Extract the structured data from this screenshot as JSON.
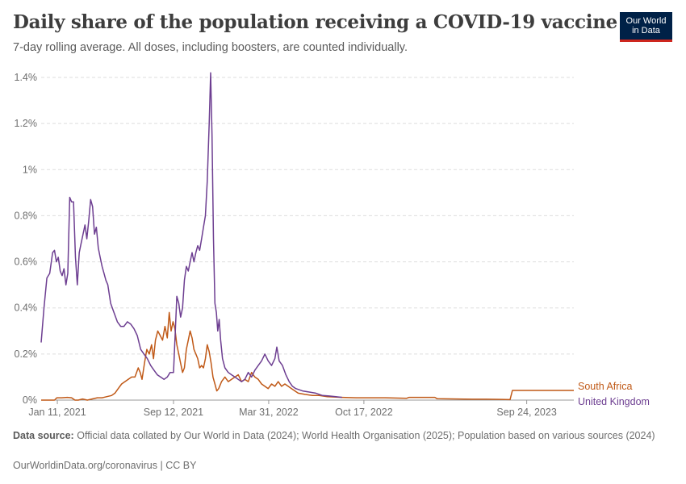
{
  "header": {
    "title": "Daily share of the population receiving a COVID-19 vaccine dose",
    "subtitle": "7-day rolling average. All doses, including boosters, are counted individually.",
    "logo_line1": "Our World",
    "logo_line2": "in Data"
  },
  "footer": {
    "source_label": "Data source:",
    "source_text": "Official data collated by Our World in Data (2024); World Health Organisation (2025); Population based on various sources (2024)",
    "license": "OurWorldinData.org/coronavirus | CC BY"
  },
  "colors": {
    "brand": "#002147",
    "brand_accent": "#ce261e",
    "south_africa": "#c05917",
    "united_kingdom": "#6d3e91",
    "grid": "#dddddd"
  },
  "chart_data": {
    "type": "line",
    "ylim": [
      0,
      1.4
    ],
    "y_ticks": [
      "0%",
      "0.2%",
      "0.4%",
      "0.6%",
      "0.8%",
      "1%",
      "1.2%",
      "1.4%"
    ],
    "x_ticks": [
      "Jan 11, 2021",
      "Sep 12, 2021",
      "Mar 31, 2022",
      "Oct 17, 2022",
      "Sep 24, 2023"
    ],
    "x_range": [
      "2020-12-08",
      "2024-01-01"
    ],
    "grid": "horizontal dashed",
    "legend_placement": "right, at line ends",
    "series": [
      {
        "name": "United Kingdom",
        "points": [
          [
            "2020-12-08",
            0.25
          ],
          [
            "2020-12-14",
            0.4
          ],
          [
            "2020-12-20",
            0.53
          ],
          [
            "2020-12-26",
            0.55
          ],
          [
            "2021-01-01",
            0.64
          ],
          [
            "2021-01-05",
            0.65
          ],
          [
            "2021-01-09",
            0.6
          ],
          [
            "2021-01-13",
            0.62
          ],
          [
            "2021-01-17",
            0.56
          ],
          [
            "2021-01-21",
            0.54
          ],
          [
            "2021-01-25",
            0.57
          ],
          [
            "2021-01-29",
            0.5
          ],
          [
            "2021-02-02",
            0.55
          ],
          [
            "2021-02-06",
            0.88
          ],
          [
            "2021-02-10",
            0.86
          ],
          [
            "2021-02-14",
            0.86
          ],
          [
            "2021-02-18",
            0.62
          ],
          [
            "2021-02-22",
            0.5
          ],
          [
            "2021-02-26",
            0.64
          ],
          [
            "2021-03-02",
            0.68
          ],
          [
            "2021-03-06",
            0.72
          ],
          [
            "2021-03-10",
            0.76
          ],
          [
            "2021-03-14",
            0.7
          ],
          [
            "2021-03-18",
            0.78
          ],
          [
            "2021-03-22",
            0.87
          ],
          [
            "2021-03-26",
            0.84
          ],
          [
            "2021-03-30",
            0.72
          ],
          [
            "2021-04-03",
            0.75
          ],
          [
            "2021-04-07",
            0.66
          ],
          [
            "2021-04-11",
            0.62
          ],
          [
            "2021-04-15",
            0.58
          ],
          [
            "2021-04-19",
            0.55
          ],
          [
            "2021-04-23",
            0.52
          ],
          [
            "2021-04-27",
            0.5
          ],
          [
            "2021-05-03",
            0.42
          ],
          [
            "2021-05-10",
            0.38
          ],
          [
            "2021-05-17",
            0.34
          ],
          [
            "2021-05-24",
            0.32
          ],
          [
            "2021-05-31",
            0.32
          ],
          [
            "2021-06-07",
            0.34
          ],
          [
            "2021-06-14",
            0.33
          ],
          [
            "2021-06-21",
            0.31
          ],
          [
            "2021-06-28",
            0.28
          ],
          [
            "2021-07-05",
            0.22
          ],
          [
            "2021-07-12",
            0.2
          ],
          [
            "2021-07-19",
            0.18
          ],
          [
            "2021-07-26",
            0.15
          ],
          [
            "2021-08-02",
            0.13
          ],
          [
            "2021-08-09",
            0.11
          ],
          [
            "2021-08-16",
            0.1
          ],
          [
            "2021-08-23",
            0.09
          ],
          [
            "2021-08-30",
            0.1
          ],
          [
            "2021-09-05",
            0.12
          ],
          [
            "2021-09-12",
            0.12
          ],
          [
            "2021-09-19",
            0.45
          ],
          [
            "2021-09-23",
            0.42
          ],
          [
            "2021-09-27",
            0.36
          ],
          [
            "2021-10-01",
            0.4
          ],
          [
            "2021-10-05",
            0.52
          ],
          [
            "2021-10-09",
            0.58
          ],
          [
            "2021-10-13",
            0.56
          ],
          [
            "2021-10-17",
            0.6
          ],
          [
            "2021-10-21",
            0.64
          ],
          [
            "2021-10-25",
            0.6
          ],
          [
            "2021-10-29",
            0.64
          ],
          [
            "2021-11-02",
            0.67
          ],
          [
            "2021-11-06",
            0.65
          ],
          [
            "2021-11-10",
            0.7
          ],
          [
            "2021-11-14",
            0.75
          ],
          [
            "2021-11-18",
            0.8
          ],
          [
            "2021-11-22",
            0.95
          ],
          [
            "2021-11-26",
            1.2
          ],
          [
            "2021-11-29",
            1.42
          ],
          [
            "2021-12-02",
            1.15
          ],
          [
            "2021-12-05",
            0.7
          ],
          [
            "2021-12-08",
            0.42
          ],
          [
            "2021-12-11",
            0.38
          ],
          [
            "2021-12-14",
            0.3
          ],
          [
            "2021-12-17",
            0.35
          ],
          [
            "2021-12-20",
            0.26
          ],
          [
            "2021-12-24",
            0.18
          ],
          [
            "2021-12-29",
            0.14
          ],
          [
            "2022-01-05",
            0.12
          ],
          [
            "2022-01-12",
            0.11
          ],
          [
            "2022-01-19",
            0.1
          ],
          [
            "2022-01-26",
            0.09
          ],
          [
            "2022-02-02",
            0.08
          ],
          [
            "2022-02-09",
            0.09
          ],
          [
            "2022-02-16",
            0.12
          ],
          [
            "2022-02-23",
            0.1
          ],
          [
            "2022-03-02",
            0.13
          ],
          [
            "2022-03-09",
            0.15
          ],
          [
            "2022-03-16",
            0.17
          ],
          [
            "2022-03-23",
            0.2
          ],
          [
            "2022-03-30",
            0.17
          ],
          [
            "2022-04-06",
            0.15
          ],
          [
            "2022-04-13",
            0.18
          ],
          [
            "2022-04-17",
            0.23
          ],
          [
            "2022-04-22",
            0.17
          ],
          [
            "2022-04-29",
            0.15
          ],
          [
            "2022-05-06",
            0.11
          ],
          [
            "2022-05-13",
            0.08
          ],
          [
            "2022-05-20",
            0.06
          ],
          [
            "2022-05-27",
            0.05
          ],
          [
            "2022-06-10",
            0.04
          ],
          [
            "2022-06-24",
            0.035
          ],
          [
            "2022-07-08",
            0.03
          ],
          [
            "2022-07-22",
            0.02
          ],
          [
            "2022-08-05",
            0.018
          ],
          [
            "2022-08-19",
            0.015
          ],
          [
            "2022-09-01",
            0.012
          ]
        ]
      },
      {
        "name": "South Africa",
        "points": [
          [
            "2020-12-08",
            0.0
          ],
          [
            "2021-01-05",
            0.0
          ],
          [
            "2021-01-10",
            0.01
          ],
          [
            "2021-01-20",
            0.01
          ],
          [
            "2021-02-01",
            0.012
          ],
          [
            "2021-02-10",
            0.01
          ],
          [
            "2021-02-17",
            0.0
          ],
          [
            "2021-02-24",
            0.0
          ],
          [
            "2021-03-05",
            0.005
          ],
          [
            "2021-03-15",
            0.0
          ],
          [
            "2021-03-25",
            0.005
          ],
          [
            "2021-04-05",
            0.01
          ],
          [
            "2021-04-15",
            0.01
          ],
          [
            "2021-04-25",
            0.015
          ],
          [
            "2021-05-05",
            0.02
          ],
          [
            "2021-05-12",
            0.03
          ],
          [
            "2021-05-19",
            0.05
          ],
          [
            "2021-05-26",
            0.07
          ],
          [
            "2021-06-02",
            0.08
          ],
          [
            "2021-06-09",
            0.09
          ],
          [
            "2021-06-16",
            0.1
          ],
          [
            "2021-06-23",
            0.1
          ],
          [
            "2021-06-30",
            0.14
          ],
          [
            "2021-07-04",
            0.12
          ],
          [
            "2021-07-08",
            0.09
          ],
          [
            "2021-07-13",
            0.16
          ],
          [
            "2021-07-18",
            0.22
          ],
          [
            "2021-07-23",
            0.2
          ],
          [
            "2021-07-28",
            0.24
          ],
          [
            "2021-08-01",
            0.18
          ],
          [
            "2021-08-05",
            0.26
          ],
          [
            "2021-08-10",
            0.3
          ],
          [
            "2021-08-15",
            0.28
          ],
          [
            "2021-08-20",
            0.26
          ],
          [
            "2021-08-25",
            0.32
          ],
          [
            "2021-08-30",
            0.27
          ],
          [
            "2021-09-03",
            0.38
          ],
          [
            "2021-09-07",
            0.3
          ],
          [
            "2021-09-11",
            0.34
          ],
          [
            "2021-09-15",
            0.31
          ],
          [
            "2021-09-19",
            0.24
          ],
          [
            "2021-09-23",
            0.2
          ],
          [
            "2021-09-27",
            0.16
          ],
          [
            "2021-10-01",
            0.12
          ],
          [
            "2021-10-05",
            0.14
          ],
          [
            "2021-10-09",
            0.22
          ],
          [
            "2021-10-13",
            0.26
          ],
          [
            "2021-10-17",
            0.3
          ],
          [
            "2021-10-21",
            0.27
          ],
          [
            "2021-10-25",
            0.22
          ],
          [
            "2021-10-29",
            0.2
          ],
          [
            "2021-11-02",
            0.18
          ],
          [
            "2021-11-06",
            0.14
          ],
          [
            "2021-11-10",
            0.15
          ],
          [
            "2021-11-14",
            0.14
          ],
          [
            "2021-11-18",
            0.18
          ],
          [
            "2021-11-22",
            0.24
          ],
          [
            "2021-11-26",
            0.21
          ],
          [
            "2021-11-30",
            0.16
          ],
          [
            "2021-12-04",
            0.1
          ],
          [
            "2021-12-08",
            0.07
          ],
          [
            "2021-12-12",
            0.04
          ],
          [
            "2021-12-16",
            0.05
          ],
          [
            "2021-12-22",
            0.08
          ],
          [
            "2021-12-29",
            0.1
          ],
          [
            "2022-01-05",
            0.08
          ],
          [
            "2022-01-12",
            0.09
          ],
          [
            "2022-01-19",
            0.1
          ],
          [
            "2022-01-26",
            0.11
          ],
          [
            "2022-02-02",
            0.08
          ],
          [
            "2022-02-09",
            0.09
          ],
          [
            "2022-02-16",
            0.08
          ],
          [
            "2022-02-23",
            0.12
          ],
          [
            "2022-03-02",
            0.1
          ],
          [
            "2022-03-09",
            0.09
          ],
          [
            "2022-03-16",
            0.07
          ],
          [
            "2022-03-23",
            0.06
          ],
          [
            "2022-03-30",
            0.05
          ],
          [
            "2022-04-06",
            0.07
          ],
          [
            "2022-04-13",
            0.06
          ],
          [
            "2022-04-20",
            0.08
          ],
          [
            "2022-04-27",
            0.06
          ],
          [
            "2022-05-04",
            0.07
          ],
          [
            "2022-05-11",
            0.06
          ],
          [
            "2022-05-18",
            0.05
          ],
          [
            "2022-05-25",
            0.04
          ],
          [
            "2022-06-01",
            0.03
          ],
          [
            "2022-06-15",
            0.025
          ],
          [
            "2022-07-01",
            0.02
          ],
          [
            "2022-07-15",
            0.02
          ],
          [
            "2022-08-01",
            0.015
          ],
          [
            "2022-09-01",
            0.012
          ],
          [
            "2022-10-01",
            0.01
          ],
          [
            "2022-11-01",
            0.01
          ],
          [
            "2022-12-01",
            0.01
          ],
          [
            "2023-01-15",
            0.008
          ],
          [
            "2023-01-20",
            0.012
          ],
          [
            "2023-03-15",
            0.012
          ],
          [
            "2023-03-20",
            0.006
          ],
          [
            "2023-05-01",
            0.005
          ],
          [
            "2023-06-01",
            0.004
          ],
          [
            "2023-07-01",
            0.004
          ],
          [
            "2023-08-01",
            0.003
          ],
          [
            "2023-08-20",
            0.002
          ],
          [
            "2023-08-25",
            0.042
          ],
          [
            "2024-01-01",
            0.042
          ]
        ]
      }
    ]
  }
}
